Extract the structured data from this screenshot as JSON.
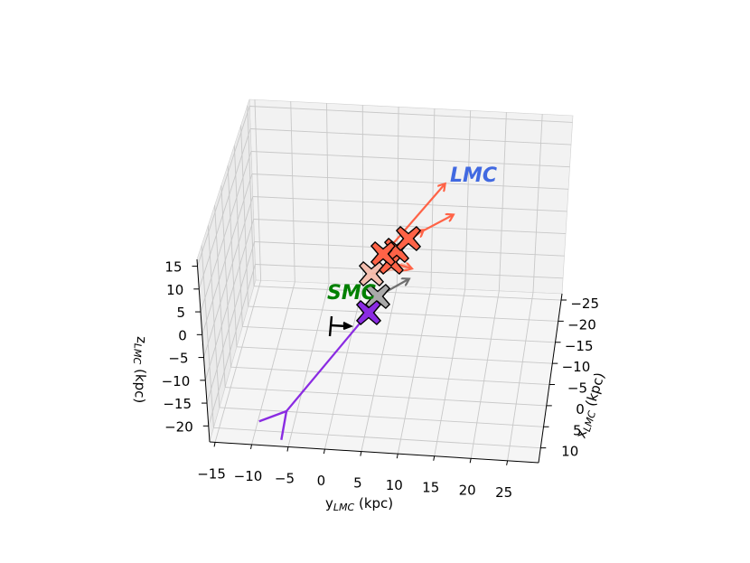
{
  "chart_data": {
    "type": "scatter",
    "projection": "3d",
    "xlabel": "x",
    "xlabel_sub": "LMC",
    "xlabel_unit": " (kpc)",
    "ylabel": "y",
    "ylabel_sub": "LMC",
    "ylabel_unit": " (kpc)",
    "zlabel": "z",
    "zlabel_sub": "LMC",
    "zlabel_unit": " (kpc)",
    "xticks": [
      "−25",
      "−20",
      "−15",
      "−10",
      "−5",
      "0",
      "5",
      "10"
    ],
    "yticks": [
      "−15",
      "−10",
      "−5",
      "0",
      "5",
      "10",
      "15",
      "20",
      "25"
    ],
    "zticks": [
      "15",
      "10",
      "5",
      "0",
      "−5",
      "−10",
      "−15",
      "−20"
    ],
    "annotations": [
      {
        "text": "LMC",
        "color": "#4169e1"
      },
      {
        "text": "SMC",
        "color": "#008000"
      }
    ],
    "colors": {
      "lmc_clusters": "#ff6347",
      "pale_cluster": "#f4b6a4",
      "gray_cluster": "#a9a9a9",
      "purple_cluster": "#8a2be2",
      "grid": "#c8c8c8",
      "pane": "#f2f2f2"
    },
    "markers": [
      {
        "id": "lmc-1",
        "color": "lmc_clusters",
        "vector": true
      },
      {
        "id": "lmc-2",
        "color": "lmc_clusters",
        "vector": true
      },
      {
        "id": "lmc-3",
        "color": "lmc_clusters",
        "vector": true
      },
      {
        "id": "lmc-4",
        "color": "lmc_clusters",
        "vector": true
      },
      {
        "id": "pale",
        "color": "pale_cluster",
        "vector": true
      },
      {
        "id": "gray",
        "color": "gray_cluster",
        "vector": true
      },
      {
        "id": "purple",
        "color": "purple_cluster",
        "vector": true
      }
    ],
    "observer_symbol": "⊢"
  }
}
